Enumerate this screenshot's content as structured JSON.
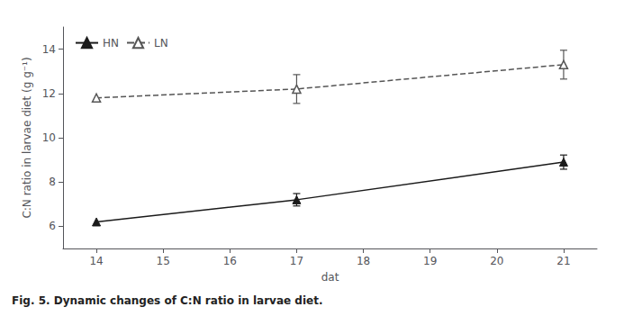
{
  "chart_data": {
    "type": "line",
    "x": [
      14,
      17,
      21
    ],
    "series": [
      {
        "name": "HN",
        "color": "#1a1a1a",
        "values": [
          6.2,
          7.2,
          8.9
        ],
        "yerr": [
          0.0,
          0.28,
          0.32
        ],
        "marker": "filled_triangle",
        "line_style": "solid"
      },
      {
        "name": "LN",
        "color": "#555555",
        "values": [
          11.8,
          12.2,
          13.3
        ],
        "yerr": [
          0.0,
          0.65,
          0.65
        ],
        "marker": "open_triangle",
        "line_style": "dashed"
      }
    ],
    "xlabel": "dat",
    "ylabel": "C:N ratio in larvae diet (g g⁻¹)",
    "xlim": [
      13.5,
      21.5
    ],
    "xticks": [
      14,
      15,
      16,
      17,
      18,
      19,
      20,
      21
    ],
    "ylim": [
      5,
      15
    ],
    "yticks": [
      6,
      8,
      10,
      12,
      14
    ],
    "grid": false,
    "legend": "upper left",
    "caption": "Fig. 5. Dynamic changes of C:N ratio in larvae diet."
  }
}
